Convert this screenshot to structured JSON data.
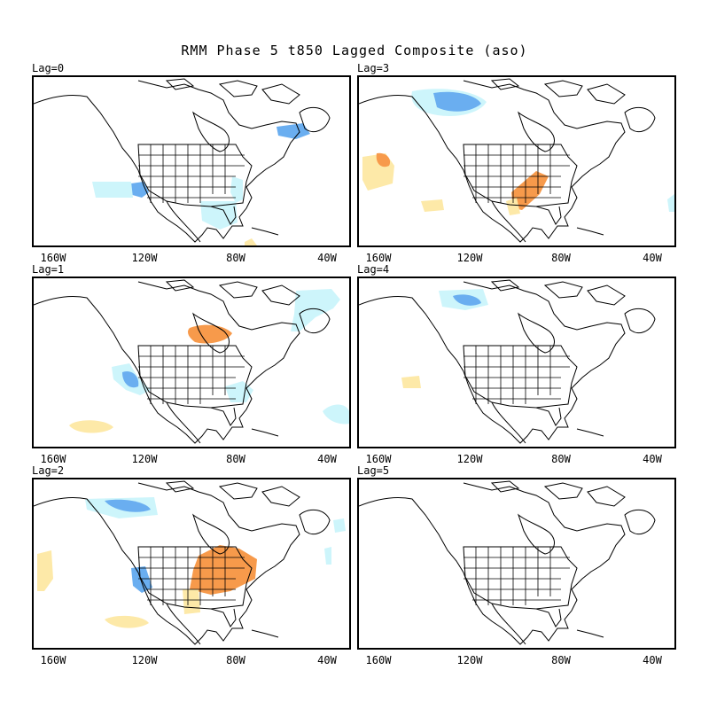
{
  "title": "RMM Phase 5 t850 Lagged Composite (aso)",
  "panels": [
    {
      "lag": "Lag=0"
    },
    {
      "lag": "Lag=3"
    },
    {
      "lag": "Lag=1"
    },
    {
      "lag": "Lag=4"
    },
    {
      "lag": "Lag=2"
    },
    {
      "lag": "Lag=5"
    }
  ],
  "x_ticks": [
    "160W",
    "120W",
    "80W",
    "40W"
  ],
  "colors": {
    "warm_light": "#fde9a8",
    "warm_strong": "#f79a4b",
    "cool_light": "#cdf5fb",
    "cool_strong": "#6aaef0",
    "coast": "#000000"
  }
}
